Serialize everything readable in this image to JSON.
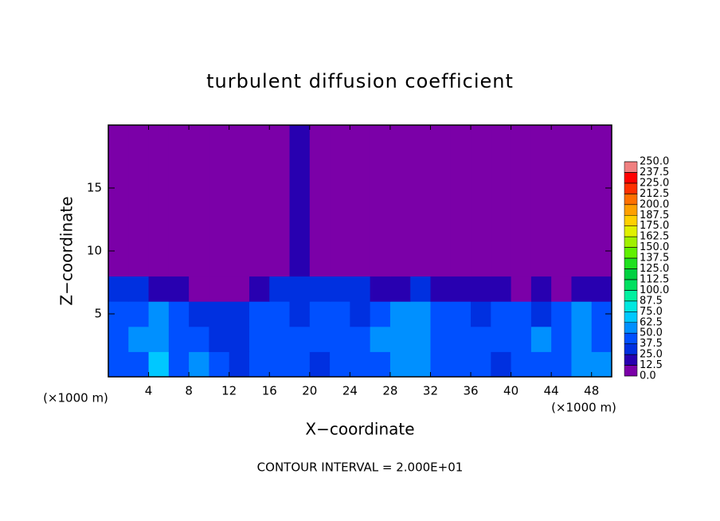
{
  "chart_data": {
    "type": "heatmap",
    "title": "turbulent diffusion coefficient",
    "x_label": "X−coordinate",
    "y_label": "Z−coordinate",
    "x_unit_label": "(×1000 m)",
    "y_unit_label": "(×1000 m)",
    "footnote": "CONTOUR INTERVAL = 2.000E+01",
    "xlim": [
      0,
      50
    ],
    "xticks": [
      4,
      8,
      12,
      16,
      20,
      24,
      28,
      32,
      36,
      40,
      44,
      48
    ],
    "ylim": [
      0,
      20
    ],
    "yticks": [
      5,
      10,
      15
    ],
    "field": {
      "x_edges": [
        0,
        2,
        4,
        6,
        8,
        10,
        12,
        14,
        16,
        18,
        20,
        22,
        24,
        26,
        28,
        30,
        32,
        34,
        36,
        38,
        40,
        42,
        44,
        46,
        48,
        50
      ],
      "y_edges": [
        0,
        2,
        4,
        6,
        8,
        20
      ],
      "values": [
        [
          40,
          45,
          70,
          45,
          60,
          40,
          35,
          38,
          45,
          40,
          35,
          40,
          45,
          38,
          50,
          55,
          45,
          40,
          38,
          35,
          40,
          45,
          40,
          55,
          50
        ],
        [
          45,
          50,
          55,
          45,
          40,
          35,
          35,
          40,
          38,
          42,
          40,
          38,
          45,
          50,
          60,
          55,
          45,
          40,
          38,
          42,
          45,
          50,
          45,
          55,
          45
        ],
        [
          40,
          45,
          60,
          40,
          35,
          30,
          35,
          38,
          40,
          35,
          38,
          40,
          35,
          45,
          55,
          50,
          45,
          40,
          35,
          38,
          40,
          35,
          45,
          50,
          40
        ],
        [
          25,
          30,
          20,
          15,
          10,
          10,
          12,
          20,
          30,
          35,
          30,
          28,
          25,
          20,
          22,
          25,
          20,
          18,
          20,
          15,
          12,
          15,
          10,
          15,
          20
        ],
        [
          3,
          3,
          3,
          3,
          3,
          3,
          3,
          3,
          5,
          15,
          5,
          5,
          3,
          3,
          3,
          3,
          3,
          3,
          3,
          3,
          3,
          3,
          3,
          3,
          3
        ]
      ]
    },
    "colorbar": {
      "ticks": [
        {
          "value": 0,
          "label": "0.0"
        },
        {
          "value": 12.5,
          "label": "12.5"
        },
        {
          "value": 25,
          "label": "25.0"
        },
        {
          "value": 37.5,
          "label": "37.5"
        },
        {
          "value": 50,
          "label": "50.0"
        },
        {
          "value": 62.5,
          "label": "62.5"
        },
        {
          "value": 75,
          "label": "75.0"
        },
        {
          "value": 87.5,
          "label": "87.5"
        },
        {
          "value": 100,
          "label": "100.0"
        },
        {
          "value": 112.5,
          "label": "112.5"
        },
        {
          "value": 125,
          "label": "125.0"
        },
        {
          "value": 137.5,
          "label": "137.5"
        },
        {
          "value": 150,
          "label": "150.0"
        },
        {
          "value": 162.5,
          "label": "162.5"
        },
        {
          "value": 175,
          "label": "175.0"
        },
        {
          "value": 187.5,
          "label": "187.5"
        },
        {
          "value": 200,
          "label": "200.0"
        },
        {
          "value": 212.5,
          "label": "212.5"
        },
        {
          "value": 225,
          "label": "225.0"
        },
        {
          "value": 237.5,
          "label": "237.5"
        },
        {
          "value": 250,
          "label": "250.0"
        }
      ],
      "colors": [
        "#7b00a8",
        "#2800b0",
        "#0030e0",
        "#0050ff",
        "#0090ff",
        "#00c8ff",
        "#00e8e0",
        "#00f0a0",
        "#00e060",
        "#00d040",
        "#20e020",
        "#60f000",
        "#a0f000",
        "#e0f000",
        "#ffd000",
        "#ffa000",
        "#ff7000",
        "#ff3000",
        "#ff0000",
        "#f08080"
      ]
    }
  }
}
